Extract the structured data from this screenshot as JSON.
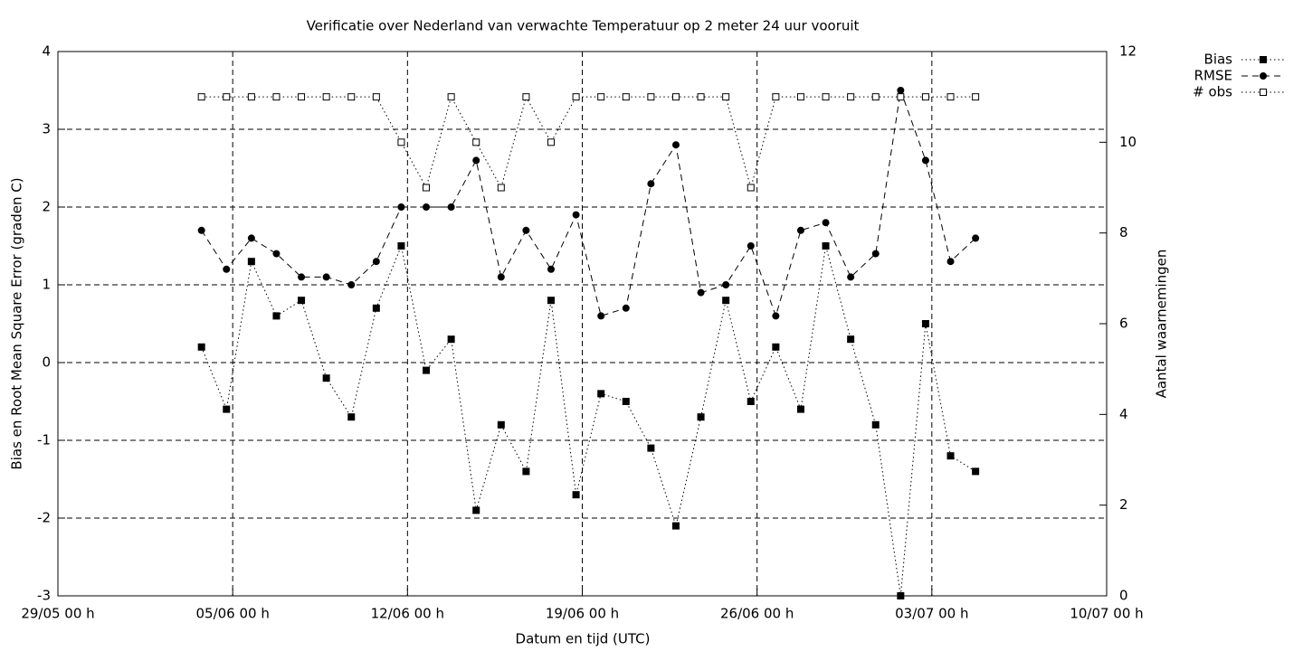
{
  "chart_data": {
    "type": "line",
    "title": "Verificatie over Nederland van verwachte Temperatuur op 2 meter 24 uur vooruit",
    "xlabel": "Datum en tijd (UTC)",
    "ylabel": "Bias en Root Mean Square Error (graden C)",
    "y2label": "Aantal waarnemingen",
    "x": [
      "03/06 18 h",
      "04/06 18 h",
      "05/06 18 h",
      "06/06 18 h",
      "07/06 18 h",
      "08/06 18 h",
      "09/06 18 h",
      "10/06 18 h",
      "11/06 18 h",
      "12/06 18 h",
      "13/06 18 h",
      "14/06 18 h",
      "15/06 18 h",
      "16/06 18 h",
      "17/06 18 h",
      "18/06 18 h",
      "19/06 18 h",
      "20/06 18 h",
      "21/06 18 h",
      "22/06 18 h",
      "23/06 18 h",
      "24/06 18 h",
      "25/06 18 h",
      "26/06 18 h",
      "27/06 18 h",
      "28/06 18 h",
      "29/06 18 h",
      "30/06 18 h",
      "01/07 18 h",
      "02/07 18 h",
      "03/07 18 h",
      "04/07 18 h"
    ],
    "series": [
      {
        "name": "Bias",
        "color": "#000000",
        "line_style": "dotted",
        "marker": "filled-square",
        "values": [
          0.2,
          -0.6,
          1.3,
          0.6,
          0.8,
          -0.2,
          -0.7,
          0.7,
          1.5,
          -0.1,
          0.3,
          -1.9,
          -0.8,
          -1.4,
          0.8,
          -1.7,
          -0.4,
          -0.5,
          -1.1,
          -2.1,
          -0.7,
          0.8,
          -0.5,
          0.2,
          -0.6,
          1.5,
          0.3,
          -0.8,
          -3.0,
          0.5,
          -1.2,
          -1.4
        ]
      },
      {
        "name": "RMSE",
        "color": "#000000",
        "line_style": "dashed",
        "marker": "filled-circle",
        "values": [
          1.7,
          1.2,
          1.6,
          1.4,
          1.1,
          1.1,
          1.0,
          1.3,
          2.0,
          2.0,
          2.0,
          2.6,
          1.1,
          1.7,
          1.2,
          1.9,
          0.6,
          0.7,
          2.3,
          2.8,
          0.9,
          1.0,
          1.5,
          0.6,
          1.7,
          1.8,
          1.1,
          1.4,
          3.5,
          2.6,
          1.3,
          1.6
        ]
      },
      {
        "name": "# obs",
        "color": "#000000",
        "line_style": "dotted",
        "marker": "open-square",
        "axis": "y2",
        "values": [
          11,
          11,
          11,
          11,
          11,
          11,
          11,
          11,
          10,
          9,
          11,
          10,
          9,
          11,
          10,
          11,
          11,
          11,
          11,
          11,
          11,
          11,
          9,
          11,
          11,
          11,
          11,
          11,
          11,
          11,
          11,
          11
        ]
      }
    ],
    "xlim": [
      "29/05 00 h",
      "10/07 00 h"
    ],
    "xticks": [
      "29/05 00 h",
      "05/06 00 h",
      "12/06 00 h",
      "19/06 00 h",
      "26/06 00 h",
      "03/07 00 h",
      "10/07 00 h"
    ],
    "ylim": [
      -3,
      4
    ],
    "yticks": [
      -3,
      -2,
      -1,
      0,
      1,
      2,
      3,
      4
    ],
    "y2lim": [
      0,
      12
    ],
    "y2ticks": [
      0,
      2,
      4,
      6,
      8,
      10,
      12
    ],
    "grid": true,
    "legend": "top-right"
  }
}
